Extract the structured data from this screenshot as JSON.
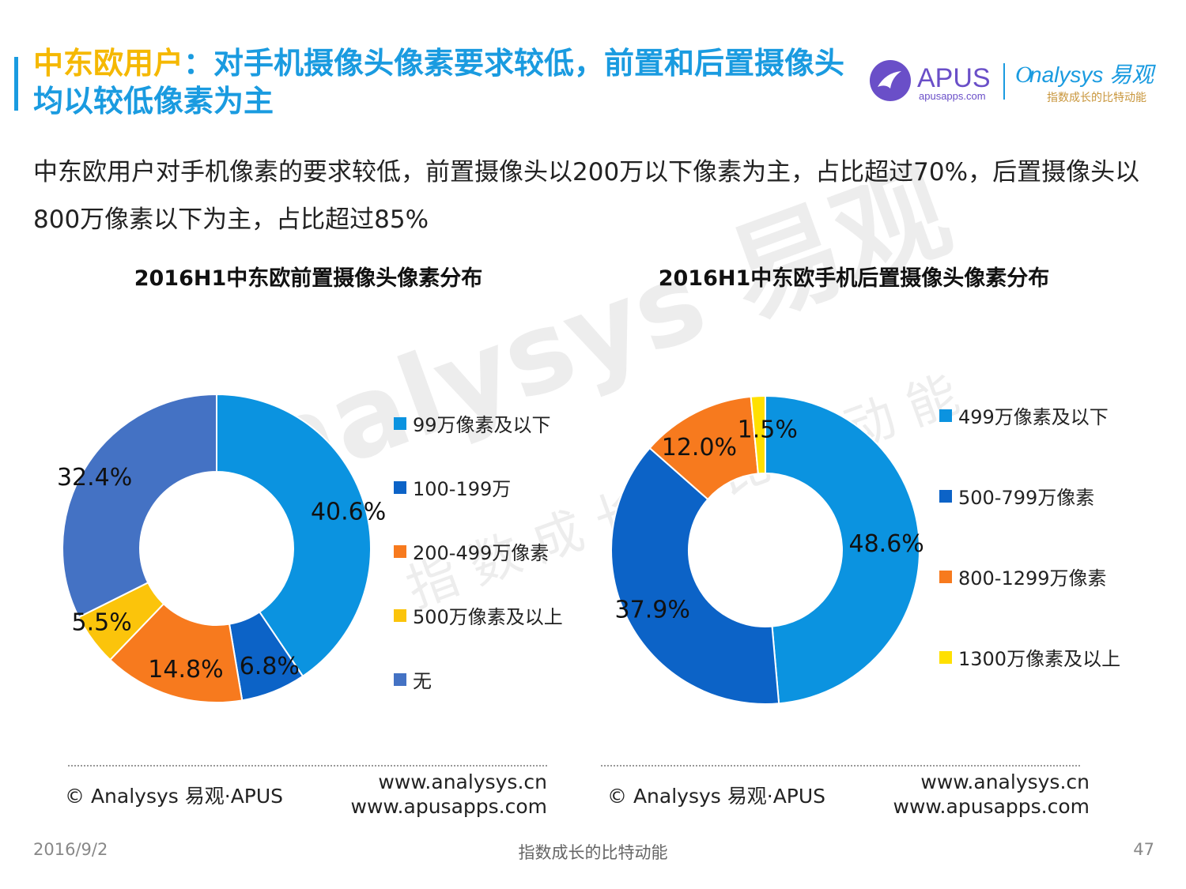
{
  "header": {
    "title_highlight": "中东欧用户",
    "title_rest": "：对手机摄像头像素要求较低，前置和后置摄像头均以较低像素为主",
    "subtitle": "中东欧用户对手机像素的要求较低，前置摄像头以200万以下像素为主，占比超过70%，后置摄像头以800万像素以下为主，占比超过85%"
  },
  "logo": {
    "apus_text": "APUS",
    "apus_url": "apusapps.com",
    "analysys_text": "nalysys 易观",
    "analysys_slogan": "指数成长的比特动能",
    "apus_color": "#6a4fc8",
    "analysys_color": "#1a9be0"
  },
  "watermark": {
    "main": "nalysys 易观",
    "sub": "指数成长的比特动能"
  },
  "chart_data": [
    {
      "type": "pie",
      "title": "2016H1中东欧前置摄像头像素分布",
      "categories": [
        "99万像素及以下",
        "100-199万",
        "200-499万像素",
        "500万像素及以上",
        "无"
      ],
      "values": [
        40.6,
        6.8,
        14.8,
        5.5,
        32.4
      ],
      "labels": [
        "40.6%",
        "6.8%",
        "14.8%",
        "5.5%",
        "32.4%"
      ],
      "colors": [
        "#0b93e0",
        "#0c63c7",
        "#f77a1e",
        "#fbc40b",
        "#4472c4"
      ],
      "legend_position": "right"
    },
    {
      "type": "pie",
      "title": "2016H1中东欧手机后置摄像头像素分布",
      "categories": [
        "499万像素及以下",
        "500-799万像素",
        "800-1299万像素",
        "1300万像素及以上"
      ],
      "values": [
        48.6,
        37.9,
        12.0,
        1.5
      ],
      "labels": [
        "48.6%",
        "37.9%",
        "12.0%",
        "1.5%"
      ],
      "colors": [
        "#0b93e0",
        "#0c63c7",
        "#f77a1e",
        "#ffe000"
      ],
      "legend_position": "right"
    }
  ],
  "sources": {
    "left": {
      "source": "© Analysys 易观·APUS",
      "url1": "www.analysys.cn",
      "url2": "www.apusapps.com"
    },
    "right": {
      "source": "© Analysys 易观·APUS",
      "url1": "www.analysys.cn",
      "url2": "www.apusapps.com"
    }
  },
  "footer": {
    "date": "2016/9/2",
    "slogan": "指数成长的比特动能",
    "page": "47"
  }
}
